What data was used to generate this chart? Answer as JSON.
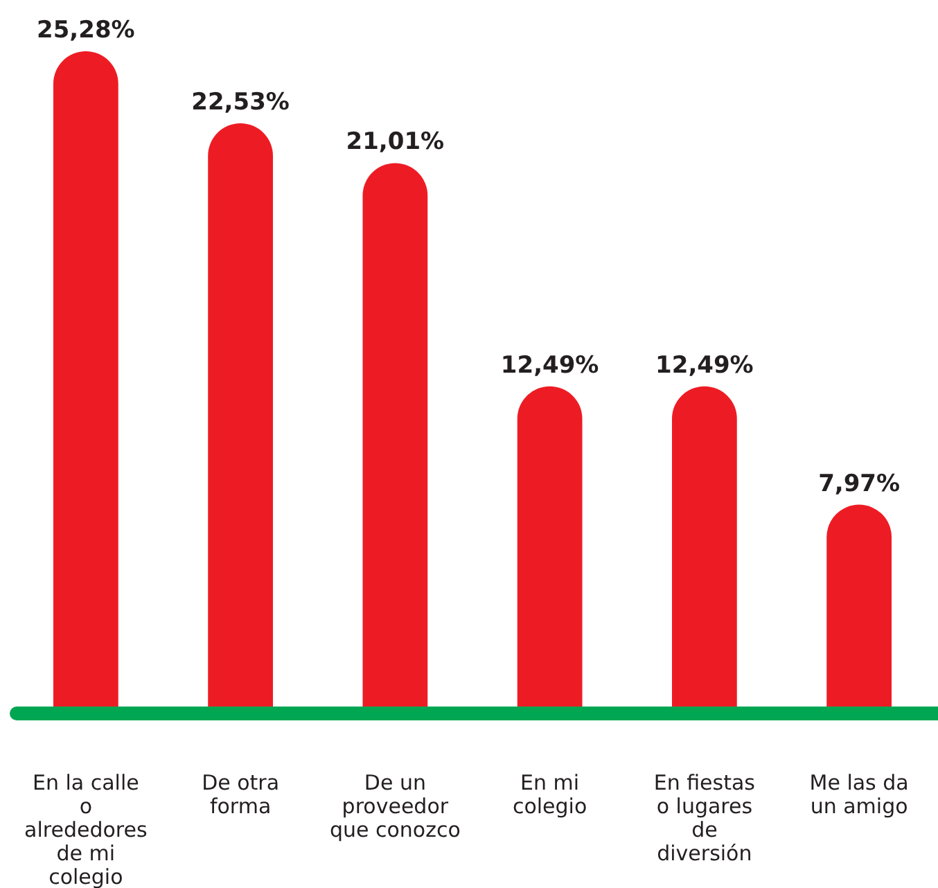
{
  "chart_data": {
    "type": "bar",
    "categories": [
      "En la calle o alrededores de mi colegio",
      "De otra forma",
      "De un proveedor que conozco",
      "En mi colegio",
      "En fiestas o lugares de diversión",
      "Me las da un amigo"
    ],
    "values": [
      25.28,
      22.53,
      21.01,
      12.49,
      12.49,
      7.97
    ],
    "value_labels": [
      "25,28%",
      "22,53%",
      "21,01%",
      "12,49%",
      "12,49%",
      "7,97%"
    ],
    "color": "#ed1c24"
  }
}
